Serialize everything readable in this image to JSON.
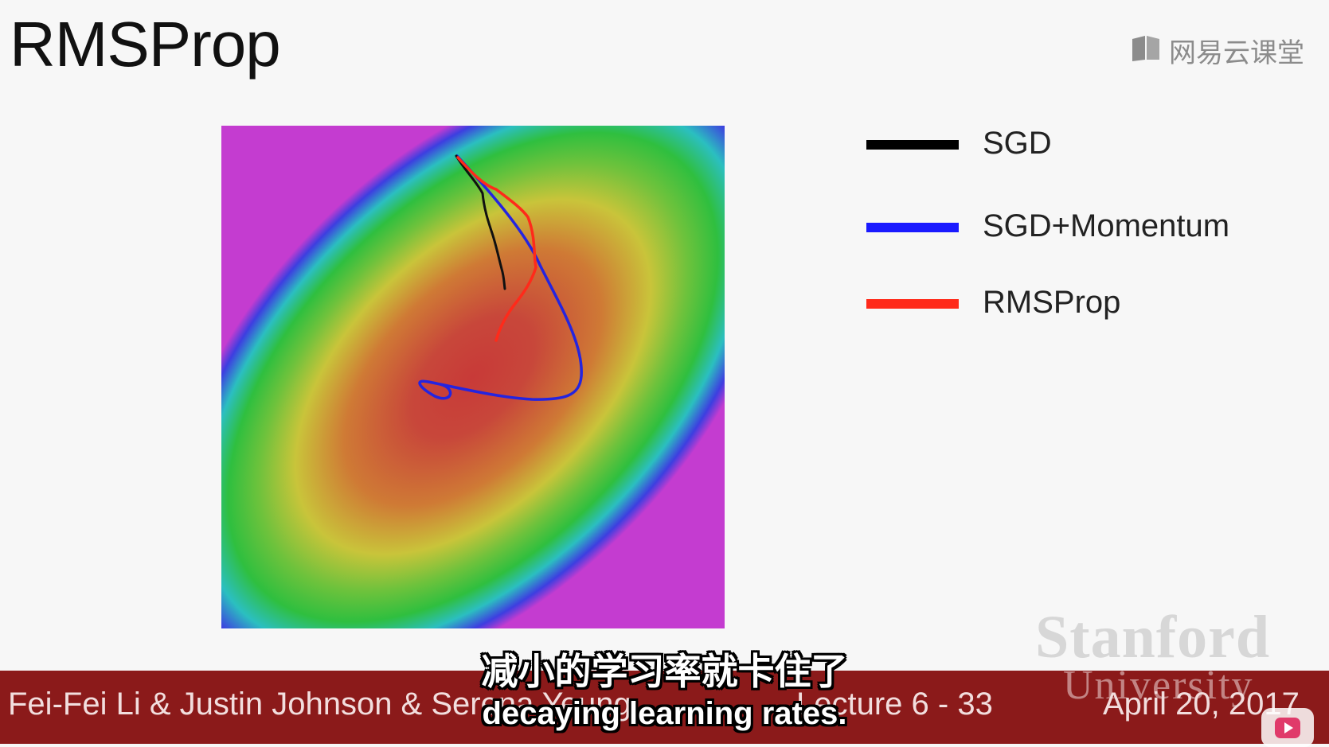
{
  "slide": {
    "title": "RMSProp",
    "watermark_logo_text": "网易云课堂",
    "legend": [
      {
        "label": "SGD",
        "color": "#000000"
      },
      {
        "label": "SGD+Momentum",
        "color": "#1a1aff"
      },
      {
        "label": "RMSProp",
        "color": "#ff2a1a"
      }
    ],
    "stanford_watermark": "Stanford",
    "university_watermark": "University",
    "footer": {
      "authors": "Fei-Fei Li & Justin Johnson & Serena Yeung",
      "lecture": "Lecture 6 - 33",
      "date": "April 20, 2017"
    }
  },
  "subtitles": {
    "chinese": "减小的学习率就卡住了",
    "english": "decaying learning rates."
  },
  "icons": {
    "logo": "book-icon",
    "player": "play-icon"
  }
}
